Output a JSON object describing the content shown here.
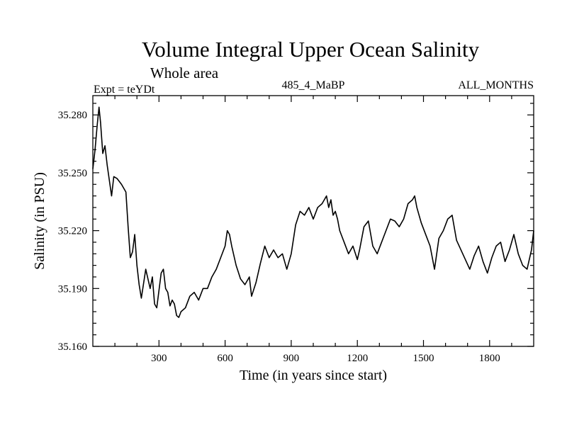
{
  "chart_data": {
    "type": "line",
    "title": "Volume Integral Upper Ocean Salinity",
    "subtitle": "Whole area",
    "left_label": "Expt = teYDt",
    "center_label": "485_4_MaBP",
    "right_label": "ALL_MONTHS",
    "xlabel": "Time (in years since start)",
    "ylabel": "Salinity (in PSU)",
    "xlim": [
      0,
      2000
    ],
    "ylim": [
      35.16,
      35.29
    ],
    "xticks": [
      300,
      600,
      900,
      1200,
      1500,
      1800
    ],
    "xtick_labels": [
      "300",
      "600",
      "900",
      "1200",
      "1500",
      "1800"
    ],
    "yticks": [
      35.16,
      35.19,
      35.22,
      35.25,
      35.28
    ],
    "ytick_labels": [
      "35.160",
      "35.190",
      "35.220",
      "35.250",
      "35.280"
    ],
    "grid": false,
    "series": [
      {
        "name": "Salinity",
        "x": [
          0,
          10,
          20,
          28,
          35,
          45,
          55,
          65,
          75,
          85,
          95,
          110,
          130,
          150,
          160,
          170,
          180,
          190,
          200,
          210,
          220,
          240,
          250,
          260,
          270,
          280,
          290,
          310,
          320,
          330,
          340,
          350,
          360,
          370,
          380,
          390,
          400,
          420,
          440,
          460,
          480,
          500,
          520,
          540,
          560,
          580,
          600,
          610,
          620,
          630,
          650,
          670,
          690,
          710,
          720,
          740,
          760,
          780,
          800,
          820,
          840,
          860,
          880,
          900,
          920,
          940,
          960,
          980,
          1000,
          1020,
          1040,
          1060,
          1070,
          1080,
          1090,
          1100,
          1110,
          1120,
          1140,
          1160,
          1180,
          1200,
          1210,
          1220,
          1230,
          1250,
          1270,
          1290,
          1310,
          1330,
          1350,
          1370,
          1390,
          1410,
          1430,
          1450,
          1460,
          1470,
          1490,
          1510,
          1530,
          1550,
          1570,
          1590,
          1610,
          1630,
          1650,
          1670,
          1690,
          1710,
          1730,
          1750,
          1770,
          1790,
          1810,
          1830,
          1850,
          1870,
          1890,
          1910,
          1930,
          1950,
          1970,
          1990,
          2000
        ],
        "values": [
          35.252,
          35.262,
          35.275,
          35.284,
          35.276,
          35.26,
          35.264,
          35.254,
          35.246,
          35.238,
          35.248,
          35.247,
          35.244,
          35.24,
          35.222,
          35.206,
          35.209,
          35.218,
          35.202,
          35.192,
          35.185,
          35.2,
          35.195,
          35.19,
          35.196,
          35.182,
          35.18,
          35.198,
          35.2,
          35.19,
          35.188,
          35.181,
          35.184,
          35.182,
          35.176,
          35.175,
          35.178,
          35.18,
          35.186,
          35.188,
          35.184,
          35.19,
          35.19,
          35.196,
          35.2,
          35.206,
          35.212,
          35.22,
          35.218,
          35.212,
          35.202,
          35.195,
          35.192,
          35.196,
          35.186,
          35.193,
          35.203,
          35.212,
          35.206,
          35.21,
          35.206,
          35.208,
          35.2,
          35.208,
          35.223,
          35.23,
          35.228,
          35.232,
          35.226,
          35.232,
          35.234,
          35.238,
          35.232,
          35.236,
          35.228,
          35.23,
          35.226,
          35.22,
          35.214,
          35.208,
          35.212,
          35.205,
          35.21,
          35.216,
          35.222,
          35.225,
          35.212,
          35.208,
          35.214,
          35.22,
          35.226,
          35.225,
          35.222,
          35.226,
          35.234,
          35.236,
          35.238,
          35.232,
          35.224,
          35.218,
          35.212,
          35.2,
          35.216,
          35.22,
          35.226,
          35.228,
          35.215,
          35.21,
          35.205,
          35.2,
          35.207,
          35.212,
          35.204,
          35.198,
          35.206,
          35.212,
          35.214,
          35.204,
          35.21,
          35.218,
          35.208,
          35.202,
          35.2,
          35.21,
          35.22
        ]
      }
    ]
  }
}
